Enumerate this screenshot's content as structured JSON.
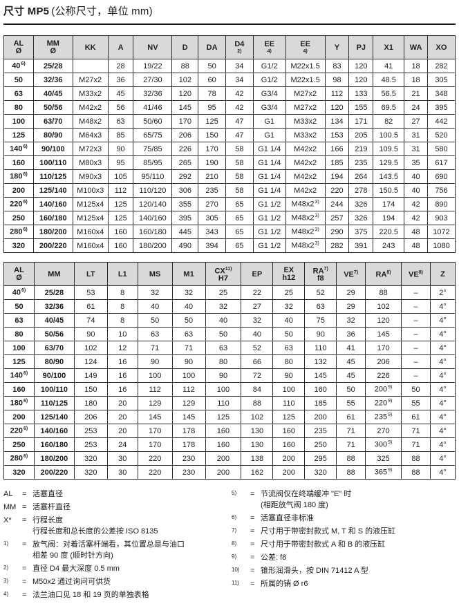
{
  "title": {
    "bold": "尺寸 MP5",
    "rest": "(公称尺寸，单位 mm)"
  },
  "colors": {
    "header_bg": "#d9d9d9",
    "border": "#2a2a2a",
    "text": "#1c1c1c"
  },
  "table1": {
    "headers": [
      {
        "t": "AL",
        "sub": "Ø"
      },
      {
        "t": "MM",
        "sub": "Ø"
      },
      {
        "t": "KK"
      },
      {
        "t": "A"
      },
      {
        "t": "NV"
      },
      {
        "t": "D"
      },
      {
        "t": "DA"
      },
      {
        "t": "D4",
        "sub": "2)"
      },
      {
        "t": "EE",
        "sub": "4)"
      },
      {
        "t": "EE",
        "sub": "4)"
      },
      {
        "t": "Y"
      },
      {
        "t": "PJ"
      },
      {
        "t": "X1"
      },
      {
        "t": "WA"
      },
      {
        "t": "XO"
      }
    ],
    "rows": [
      [
        "40^6)",
        "25/28",
        "",
        "28",
        "19/22",
        "88",
        "50",
        "34",
        "G1/2",
        "M22x1.5",
        "83",
        "120",
        "41",
        "18",
        "282"
      ],
      [
        "50",
        "32/36",
        "M27x2",
        "36",
        "27/30",
        "102",
        "60",
        "34",
        "G1/2",
        "M22x1.5",
        "98",
        "120",
        "48.5",
        "18",
        "305"
      ],
      [
        "63",
        "40/45",
        "M33x2",
        "45",
        "32/36",
        "120",
        "78",
        "42",
        "G3/4",
        "M27x2",
        "112",
        "133",
        "56.5",
        "21",
        "348"
      ],
      [
        "80",
        "50/56",
        "M42x2",
        "56",
        "41/46",
        "145",
        "95",
        "42",
        "G3/4",
        "M27x2",
        "120",
        "155",
        "69.5",
        "24",
        "395"
      ],
      [
        "100",
        "63/70",
        "M48x2",
        "63",
        "50/60",
        "170",
        "125",
        "47",
        "G1",
        "M33x2",
        "134",
        "171",
        "82",
        "27",
        "442"
      ],
      [
        "125",
        "80/90",
        "M64x3",
        "85",
        "65/75",
        "206",
        "150",
        "47",
        "G1",
        "M33x2",
        "153",
        "205",
        "100.5",
        "31",
        "520"
      ],
      [
        "140^6)",
        "90/100",
        "M72x3",
        "90",
        "75/85",
        "226",
        "170",
        "58",
        "G1 1/4",
        "M42x2",
        "166",
        "219",
        "109.5",
        "31",
        "580"
      ],
      [
        "160",
        "100/110",
        "M80x3",
        "95",
        "85/95",
        "265",
        "190",
        "58",
        "G1 1/4",
        "M42x2",
        "185",
        "235",
        "129.5",
        "35",
        "617"
      ],
      [
        "180^6)",
        "110/125",
        "M90x3",
        "105",
        "95/110",
        "292",
        "210",
        "58",
        "G1 1/4",
        "M42x2",
        "194",
        "264",
        "143.5",
        "40",
        "690"
      ],
      [
        "200",
        "125/140",
        "M100x3",
        "112",
        "110/120",
        "306",
        "235",
        "58",
        "G1 1/4",
        "M42x2",
        "220",
        "278",
        "150.5",
        "40",
        "756"
      ],
      [
        "220^6)",
        "140/160",
        "M125x4",
        "125",
        "120/140",
        "355",
        "270",
        "65",
        "G1 1/2",
        "M48x2^3)",
        "244",
        "326",
        "174",
        "42",
        "890"
      ],
      [
        "250",
        "160/180",
        "M125x4",
        "125",
        "140/160",
        "395",
        "305",
        "65",
        "G1 1/2",
        "M48x2^3)",
        "257",
        "326",
        "194",
        "42",
        "903"
      ],
      [
        "280^6)",
        "180/200",
        "M160x4",
        "160",
        "160/180",
        "445",
        "343",
        "65",
        "G1 1/2",
        "M48x2^3)",
        "290",
        "375",
        "220.5",
        "48",
        "1072"
      ],
      [
        "320",
        "200/220",
        "M160x4",
        "160",
        "180/200",
        "490",
        "394",
        "65",
        "G1 1/2",
        "M48x2^3)",
        "282",
        "391",
        "243",
        "48",
        "1080"
      ]
    ]
  },
  "table2": {
    "headers": [
      {
        "t": "AL",
        "sub": "Ø"
      },
      {
        "t": "MM"
      },
      {
        "t": "LT"
      },
      {
        "t": "L1"
      },
      {
        "t": "MS"
      },
      {
        "t": "M1"
      },
      {
        "t": "CX",
        "sup": "11)",
        "sub": "H7"
      },
      {
        "t": "EP"
      },
      {
        "t": "EX",
        "sub": "h12"
      },
      {
        "t": "RA",
        "sup": "7)",
        "sub": "f8"
      },
      {
        "t": "VE",
        "sup": "7)"
      },
      {
        "t": "RA",
        "sup": "8)"
      },
      {
        "t": "VE",
        "sup": "8)"
      },
      {
        "t": "Z"
      }
    ],
    "rows": [
      [
        "40^6)",
        "25/28",
        "53",
        "8",
        "32",
        "32",
        "25",
        "22",
        "25",
        "52",
        "29",
        "88",
        "–",
        "2°"
      ],
      [
        "50",
        "32/36",
        "61",
        "8",
        "40",
        "40",
        "32",
        "27",
        "32",
        "63",
        "29",
        "102",
        "–",
        "4°"
      ],
      [
        "63",
        "40/45",
        "74",
        "8",
        "50",
        "50",
        "40",
        "32",
        "40",
        "75",
        "32",
        "120",
        "–",
        "4°"
      ],
      [
        "80",
        "50/56",
        "90",
        "10",
        "63",
        "63",
        "50",
        "40",
        "50",
        "90",
        "36",
        "145",
        "–",
        "4°"
      ],
      [
        "100",
        "63/70",
        "102",
        "12",
        "71",
        "71",
        "63",
        "52",
        "63",
        "110",
        "41",
        "170",
        "–",
        "4°"
      ],
      [
        "125",
        "80/90",
        "124",
        "16",
        "90",
        "90",
        "80",
        "66",
        "80",
        "132",
        "45",
        "206",
        "–",
        "4°"
      ],
      [
        "140^6)",
        "90/100",
        "149",
        "16",
        "100",
        "100",
        "90",
        "72",
        "90",
        "145",
        "45",
        "226",
        "–",
        "4°"
      ],
      [
        "160",
        "100/110",
        "150",
        "16",
        "112",
        "112",
        "100",
        "84",
        "100",
        "160",
        "50",
        "200^9)",
        "50",
        "4°"
      ],
      [
        "180^6)",
        "110/125",
        "180",
        "20",
        "129",
        "129",
        "110",
        "88",
        "110",
        "185",
        "55",
        "220^9)",
        "55",
        "4°"
      ],
      [
        "200",
        "125/140",
        "206",
        "20",
        "145",
        "145",
        "125",
        "102",
        "125",
        "200",
        "61",
        "235^9)",
        "61",
        "4°"
      ],
      [
        "220^6)",
        "140/160",
        "253",
        "20",
        "170",
        "178",
        "160",
        "130",
        "160",
        "235",
        "71",
        "270",
        "71",
        "4°"
      ],
      [
        "250",
        "160/180",
        "253",
        "24",
        "170",
        "178",
        "160",
        "130",
        "160",
        "250",
        "71",
        "300^9)",
        "71",
        "4°"
      ],
      [
        "280^6)",
        "180/200",
        "320",
        "30",
        "220",
        "230",
        "200",
        "138",
        "200",
        "295",
        "88",
        "325",
        "88",
        "4°"
      ],
      [
        "320",
        "200/220",
        "320",
        "30",
        "220",
        "230",
        "200",
        "162",
        "200",
        "320",
        "88",
        "365^9)",
        "88",
        "4°"
      ]
    ]
  },
  "footnotes": {
    "left": [
      {
        "term": "AL",
        "lines": [
          "活塞直径"
        ]
      },
      {
        "term": "MM",
        "lines": [
          "活塞杆直径"
        ]
      },
      {
        "term": "X*",
        "lines": [
          "行程长度",
          "行程长度和总长度的公差按 ISO 8135"
        ]
      },
      {
        "term": "1)",
        "lines": [
          "放气阀：对着活塞杆端看，其位置总是与油口",
          "相差 90 度 (顺时针方向)"
        ]
      },
      {
        "term": "2)",
        "lines": [
          "直径 D4 最大深度 0.5 mm"
        ]
      },
      {
        "term": "3)",
        "lines": [
          "M50x2 通过询问可供货"
        ]
      },
      {
        "term": "4)",
        "lines": [
          "法兰油口见 18 和 19 页的单独表格"
        ]
      }
    ],
    "right": [
      {
        "term": "5)",
        "lines": [
          "节流阀仅在终端缓冲 \"E\" 时",
          "(相距放气阀  180 度)"
        ]
      },
      {
        "term": "6)",
        "lines": [
          "活塞直径非标准"
        ]
      },
      {
        "term": "7)",
        "lines": [
          "尺寸用于带密封款式 M, T 和 S 的液压缸"
        ]
      },
      {
        "term": "8)",
        "lines": [
          "尺寸用于带密封款式 A 和 B 的液压缸"
        ]
      },
      {
        "term": "9)",
        "lines": [
          "公差: f8"
        ]
      },
      {
        "term": "10)",
        "lines": [
          "锥形润滑头，按 DIN 71412  A 型"
        ]
      },
      {
        "term": "11)",
        "lines": [
          "所属的销  Ø r6"
        ]
      }
    ]
  }
}
